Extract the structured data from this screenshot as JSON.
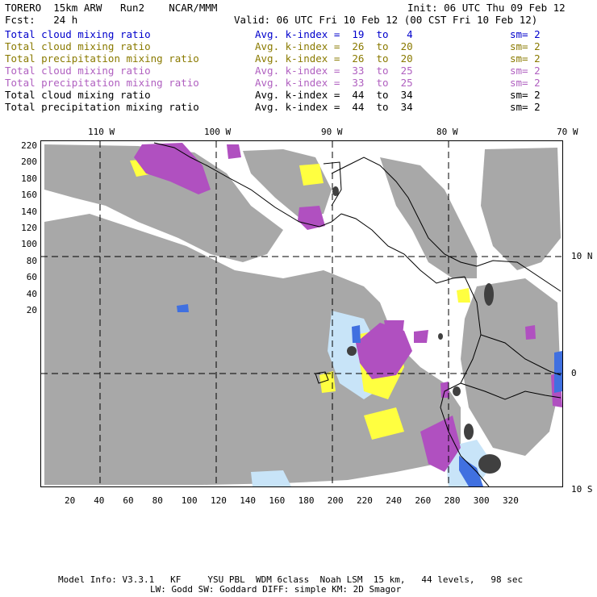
{
  "header": {
    "model": "TORERO  15km ARW   Run2    NCAR/MMM",
    "init": "Init: 06 UTC Thu 09 Feb 12",
    "fcst": "Fcst:   24 h",
    "valid": "Valid: 06 UTC Fri 10 Feb 12 (00 CST Fri 10 Feb 12)"
  },
  "fields": [
    {
      "name": "Total cloud mixing ratio",
      "kindex": "Avg. k-index =  19  to   4",
      "sm": "sm= 2",
      "color": "#0000cc"
    },
    {
      "name": "Total cloud mixing ratio",
      "kindex": "Avg. k-index =  26  to  20",
      "sm": "sm= 2",
      "color": "#8a7a00"
    },
    {
      "name": "Total precipitation mixing ratio",
      "kindex": "Avg. k-index =  26  to  20",
      "sm": "sm= 2",
      "color": "#8a7a00"
    },
    {
      "name": "Total cloud mixing ratio",
      "kindex": "Avg. k-index =  33  to  25",
      "sm": "sm= 2",
      "color": "#b060c0"
    },
    {
      "name": "Total precipitation mixing ratio",
      "kindex": "Avg. k-index =  33  to  25",
      "sm": "sm= 2",
      "color": "#b060c0"
    },
    {
      "name": "Total cloud mixing ratio",
      "kindex": "Avg. k-index =  44  to  34",
      "sm": "sm= 2",
      "color": "#000000"
    },
    {
      "name": "Total precipitation mixing ratio",
      "kindex": "Avg. k-index =  44  to  34",
      "sm": "sm= 2",
      "color": "#000000"
    }
  ],
  "map": {
    "lon_labels": [
      "110 W",
      "100 W",
      "90 W",
      "80 W",
      "70 W"
    ],
    "lat_labels": [
      "10 N",
      "0",
      "10 S"
    ],
    "y_ticks": [
      "220",
      "200",
      "180",
      "160",
      "140",
      "120",
      "100",
      "80",
      "60",
      "40",
      "20"
    ],
    "x_ticks": [
      "20",
      "40",
      "60",
      "80",
      "100",
      "120",
      "140",
      "160",
      "180",
      "200",
      "220",
      "240",
      "260",
      "280",
      "300",
      "320"
    ],
    "colors": {
      "cloud_gray": "#a8a8a8",
      "yellow": "#ffff40",
      "purple": "#b050c0",
      "light_blue": "#c8e4f8",
      "blue": "#4070e0",
      "dark": "#404040"
    }
  },
  "footer": {
    "line1": "Model Info: V3.3.1   KF     YSU PBL  WDM 6class  Noah LSM  15 km,   44 levels,   98 sec",
    "line2": "LW: Godd SW: Goddard DIFF: simple KM: 2D Smagor"
  }
}
